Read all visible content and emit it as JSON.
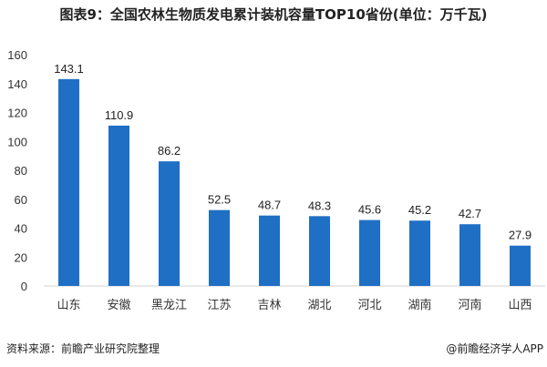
{
  "chart_data": {
    "type": "bar",
    "title": "图表9：全国农林生物质发电累计装机容量TOP10省份(单位：万千瓦)",
    "categories": [
      "山东",
      "安徽",
      "黑龙江",
      "江苏",
      "吉林",
      "湖北",
      "河北",
      "湖南",
      "河南",
      "山西"
    ],
    "values": [
      143.1,
      110.9,
      86.2,
      52.5,
      48.7,
      48.3,
      45.6,
      45.2,
      42.7,
      27.9
    ],
    "value_labels": [
      "143.1",
      "110.9",
      "86.2",
      "52.5",
      "48.7",
      "48.3",
      "45.6",
      "45.2",
      "42.7",
      "27.9"
    ],
    "yticks": [
      "0",
      "20",
      "40",
      "60",
      "80",
      "100",
      "120",
      "140",
      "160"
    ],
    "ylim": [
      0,
      160
    ],
    "grid": false,
    "bar_color": "#1f6fc5",
    "xlabel": "",
    "ylabel": ""
  },
  "footer": {
    "source": "资料来源：前瞻产业研究院整理",
    "credit": "@前瞻经济学人APP"
  }
}
